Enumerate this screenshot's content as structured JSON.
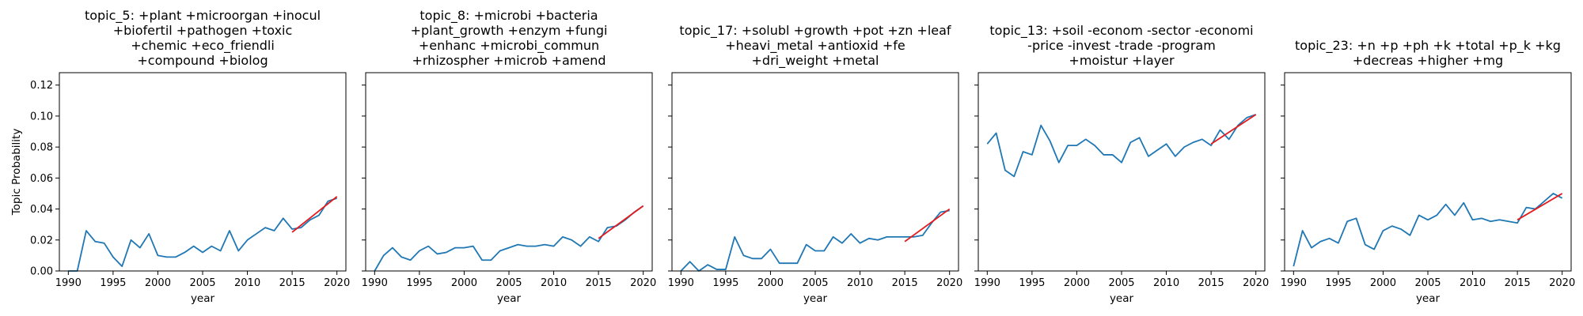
{
  "figure": {
    "ylabel": "Topic Probability"
  },
  "chart_data": [
    {
      "type": "line",
      "title": [
        "topic_5: +plant +microorgan +inocul",
        "+biofertil +pathogen +toxic",
        "+chemic +eco_friendli",
        "+compound +biolog"
      ],
      "xlabel": "year",
      "ylabel": "Topic Probability",
      "xlim": [
        1989,
        2021
      ],
      "ylim": [
        0,
        0.128
      ],
      "xticks": [
        1990,
        1995,
        2000,
        2005,
        2010,
        2015,
        2020
      ],
      "yticks": [
        0.0,
        0.02,
        0.04,
        0.06,
        0.08,
        0.1,
        0.12
      ],
      "x": [
        1990,
        1991,
        1992,
        1993,
        1994,
        1995,
        1996,
        1997,
        1998,
        1999,
        2000,
        2001,
        2002,
        2003,
        2004,
        2005,
        2006,
        2007,
        2008,
        2009,
        2010,
        2011,
        2012,
        2013,
        2014,
        2015,
        2016,
        2017,
        2018,
        2019,
        2020
      ],
      "series": [
        {
          "color": "#1f77b4",
          "values": [
            0.0,
            0.0,
            0.026,
            0.019,
            0.018,
            0.009,
            0.003,
            0.02,
            0.015,
            0.024,
            0.01,
            0.009,
            0.009,
            0.012,
            0.016,
            0.012,
            0.016,
            0.013,
            0.026,
            0.013,
            0.02,
            0.024,
            0.028,
            0.026,
            0.034,
            0.027,
            0.028,
            0.033,
            0.036,
            0.045,
            0.047
          ]
        }
      ],
      "trend": {
        "color": "#e41a1c",
        "x": [
          2015,
          2020
        ],
        "y": [
          0.025,
          0.048
        ]
      }
    },
    {
      "type": "line",
      "title": [
        "topic_8: +microbi +bacteria",
        "+plant_growth +enzym +fungi",
        "+enhanc +microbi_commun",
        "+rhizospher +microb +amend"
      ],
      "xlabel": "year",
      "xlim": [
        1989,
        2021
      ],
      "ylim": [
        0,
        0.128
      ],
      "xticks": [
        1990,
        1995,
        2000,
        2005,
        2010,
        2015,
        2020
      ],
      "yticks": [
        0.0,
        0.02,
        0.04,
        0.06,
        0.08,
        0.1,
        0.12
      ],
      "x": [
        1990,
        1991,
        1992,
        1993,
        1994,
        1995,
        1996,
        1997,
        1998,
        1999,
        2000,
        2001,
        2002,
        2003,
        2004,
        2005,
        2006,
        2007,
        2008,
        2009,
        2010,
        2011,
        2012,
        2013,
        2014,
        2015,
        2016,
        2017,
        2018,
        2019,
        2020
      ],
      "series": [
        {
          "color": "#1f77b4",
          "values": [
            0.0,
            0.01,
            0.015,
            0.009,
            0.007,
            0.013,
            0.016,
            0.011,
            0.012,
            0.015,
            0.015,
            0.016,
            0.007,
            0.007,
            0.013,
            0.015,
            0.017,
            0.016,
            0.016,
            0.017,
            0.016,
            0.022,
            0.02,
            0.016,
            0.022,
            0.019,
            0.028,
            0.029,
            0.033,
            0.038,
            0.042
          ]
        }
      ],
      "trend": {
        "color": "#e41a1c",
        "x": [
          2015,
          2020
        ],
        "y": [
          0.021,
          0.042
        ]
      }
    },
    {
      "type": "line",
      "title": [
        "topic_17: +solubl +growth +pot +zn +leaf",
        "+heavi_metal +antioxid +fe",
        "+dri_weight +metal"
      ],
      "xlabel": "year",
      "xlim": [
        1989,
        2021
      ],
      "ylim": [
        0,
        0.128
      ],
      "xticks": [
        1990,
        1995,
        2000,
        2005,
        2010,
        2015,
        2020
      ],
      "yticks": [
        0.0,
        0.02,
        0.04,
        0.06,
        0.08,
        0.1,
        0.12
      ],
      "x": [
        1990,
        1991,
        1992,
        1993,
        1994,
        1995,
        1996,
        1997,
        1998,
        1999,
        2000,
        2001,
        2002,
        2003,
        2004,
        2005,
        2006,
        2007,
        2008,
        2009,
        2010,
        2011,
        2012,
        2013,
        2014,
        2015,
        2016,
        2017,
        2018,
        2019,
        2020
      ],
      "series": [
        {
          "color": "#1f77b4",
          "values": [
            0.0,
            0.006,
            0.0,
            0.004,
            0.001,
            0.001,
            0.022,
            0.01,
            0.008,
            0.008,
            0.014,
            0.005,
            0.005,
            0.005,
            0.017,
            0.013,
            0.013,
            0.022,
            0.018,
            0.024,
            0.018,
            0.021,
            0.02,
            0.022,
            0.022,
            0.022,
            0.022,
            0.023,
            0.031,
            0.038,
            0.039
          ]
        }
      ],
      "trend": {
        "color": "#e41a1c",
        "x": [
          2015,
          2020
        ],
        "y": [
          0.019,
          0.04
        ]
      }
    },
    {
      "type": "line",
      "title": [
        "topic_13: +soil -econom -sector -economi",
        "-price -invest -trade -program",
        "+moistur +layer"
      ],
      "xlabel": "year",
      "xlim": [
        1989,
        2021
      ],
      "ylim": [
        0,
        0.128
      ],
      "xticks": [
        1990,
        1995,
        2000,
        2005,
        2010,
        2015,
        2020
      ],
      "yticks": [
        0.0,
        0.02,
        0.04,
        0.06,
        0.08,
        0.1,
        0.12
      ],
      "x": [
        1990,
        1991,
        1992,
        1993,
        1994,
        1995,
        1996,
        1997,
        1998,
        1999,
        2000,
        2001,
        2002,
        2003,
        2004,
        2005,
        2006,
        2007,
        2008,
        2009,
        2010,
        2011,
        2012,
        2013,
        2014,
        2015,
        2016,
        2017,
        2018,
        2019,
        2020
      ],
      "series": [
        {
          "color": "#1f77b4",
          "values": [
            0.082,
            0.089,
            0.065,
            0.061,
            0.077,
            0.075,
            0.094,
            0.084,
            0.07,
            0.081,
            0.081,
            0.085,
            0.081,
            0.075,
            0.075,
            0.07,
            0.083,
            0.086,
            0.074,
            0.078,
            0.082,
            0.074,
            0.08,
            0.083,
            0.085,
            0.081,
            0.091,
            0.085,
            0.094,
            0.099,
            0.101
          ]
        }
      ],
      "trend": {
        "color": "#e41a1c",
        "x": [
          2015,
          2020
        ],
        "y": [
          0.082,
          0.101
        ]
      }
    },
    {
      "type": "line",
      "title": [
        "topic_23: +n +p +ph +k +total +p_k +kg",
        "+decreas +higher +mg"
      ],
      "xlabel": "year",
      "xlim": [
        1989,
        2021
      ],
      "ylim": [
        0,
        0.128
      ],
      "xticks": [
        1990,
        1995,
        2000,
        2005,
        2010,
        2015,
        2020
      ],
      "yticks": [
        0.0,
        0.02,
        0.04,
        0.06,
        0.08,
        0.1,
        0.12
      ],
      "x": [
        1990,
        1991,
        1992,
        1993,
        1994,
        1995,
        1996,
        1997,
        1998,
        1999,
        2000,
        2001,
        2002,
        2003,
        2004,
        2005,
        2006,
        2007,
        2008,
        2009,
        2010,
        2011,
        2012,
        2013,
        2014,
        2015,
        2016,
        2017,
        2018,
        2019,
        2020
      ],
      "series": [
        {
          "color": "#1f77b4",
          "values": [
            0.003,
            0.026,
            0.015,
            0.019,
            0.021,
            0.018,
            0.032,
            0.034,
            0.017,
            0.014,
            0.026,
            0.029,
            0.027,
            0.023,
            0.036,
            0.033,
            0.036,
            0.043,
            0.036,
            0.044,
            0.033,
            0.034,
            0.032,
            0.033,
            0.032,
            0.031,
            0.041,
            0.04,
            0.045,
            0.05,
            0.047
          ]
        }
      ],
      "trend": {
        "color": "#e41a1c",
        "x": [
          2015,
          2020
        ],
        "y": [
          0.033,
          0.05
        ]
      }
    }
  ]
}
